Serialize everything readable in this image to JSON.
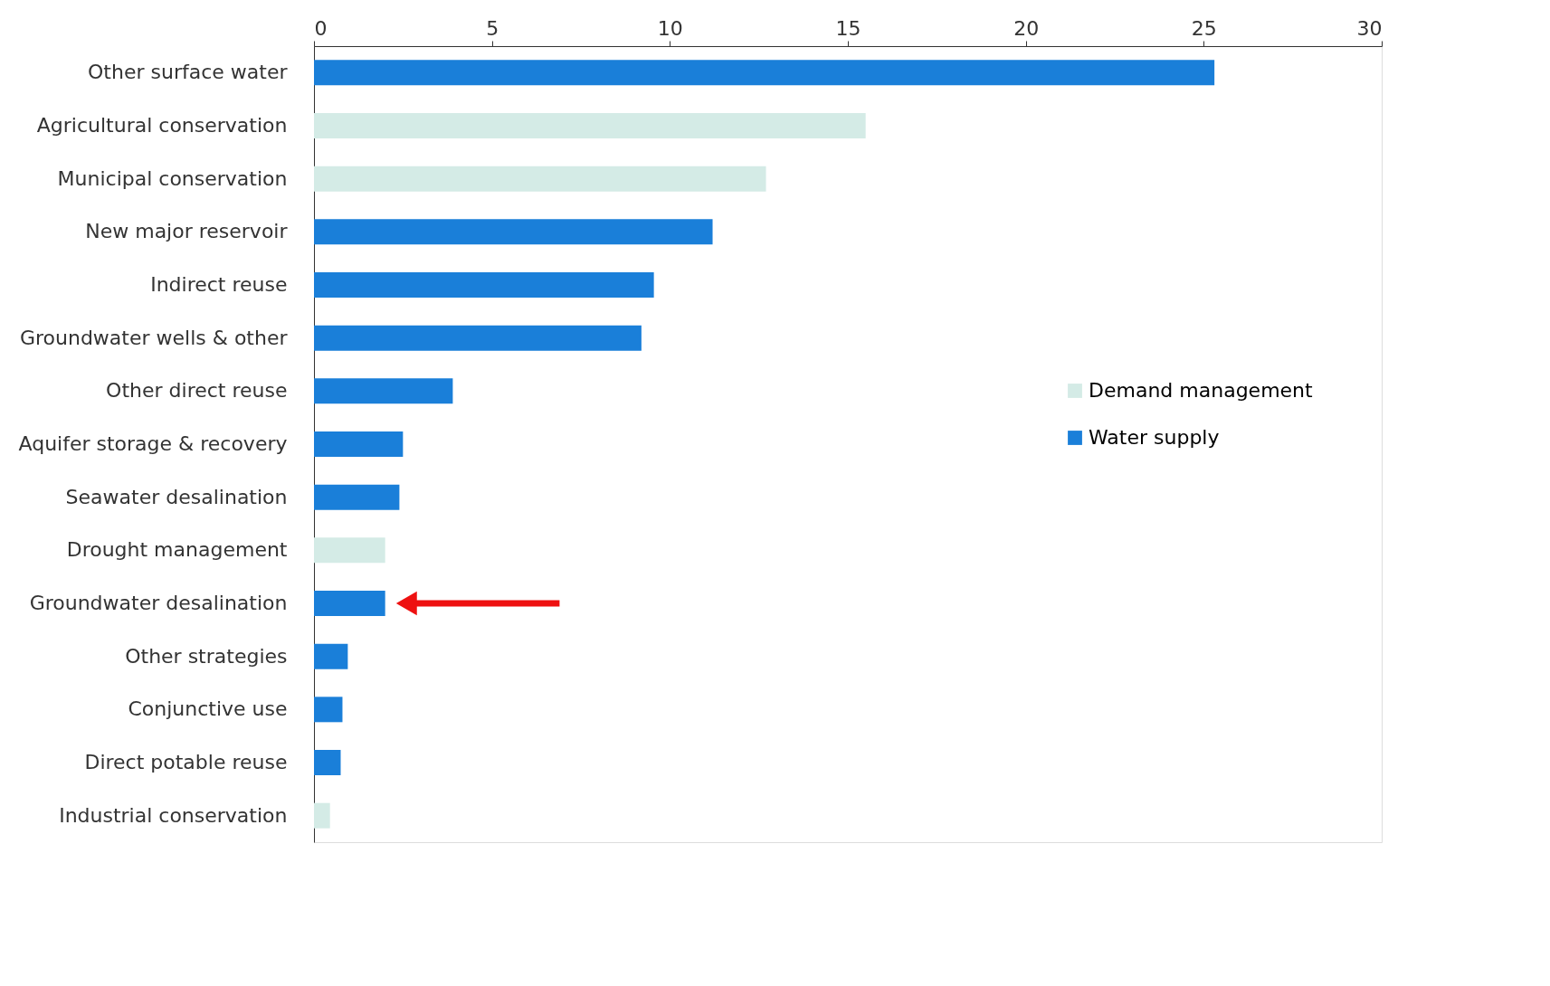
{
  "chart_data": {
    "type": "bar",
    "orientation": "horizontal",
    "categories": [
      "Other surface water",
      "Agricultural conservation",
      "Municipal conservation",
      "New major reservoir",
      "Indirect reuse",
      "Groundwater wells & other",
      "Other direct reuse",
      "Aquifer storage & recovery",
      "Seawater desalination",
      "Drought management",
      "Groundwater desalination",
      "Other strategies",
      "Conjunctive use",
      "Direct potable reuse",
      "Industrial conservation"
    ],
    "series": [
      {
        "name": "Demand management",
        "color": "#d4ebe6",
        "values": [
          null,
          15.5,
          12.7,
          null,
          null,
          null,
          null,
          null,
          null,
          2.0,
          null,
          null,
          null,
          null,
          0.45
        ]
      },
      {
        "name": "Water supply",
        "color": "#1a7fd9",
        "values": [
          25.3,
          null,
          null,
          11.2,
          9.55,
          9.2,
          3.9,
          2.5,
          2.4,
          null,
          2.0,
          0.95,
          0.8,
          0.75,
          null
        ]
      }
    ],
    "xlim": [
      0,
      30
    ],
    "xticks": [
      0,
      5,
      10,
      15,
      20,
      25,
      30
    ],
    "grid": false,
    "legend": "right"
  }
}
